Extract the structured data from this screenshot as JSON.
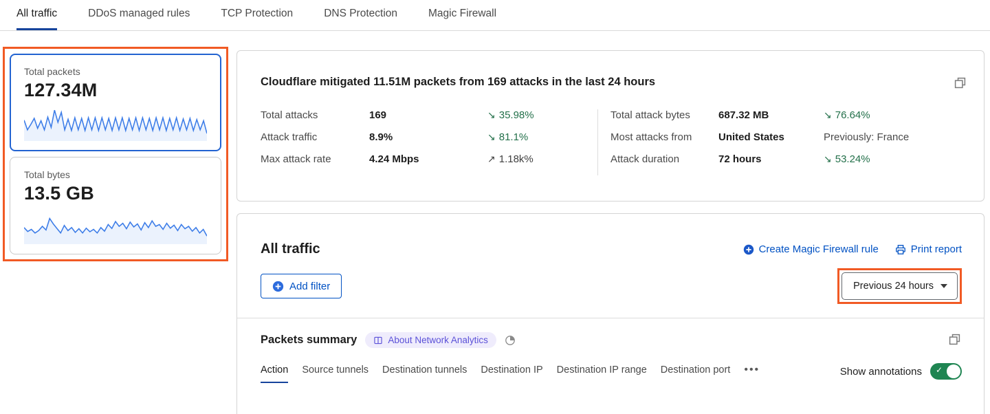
{
  "tabs": [
    {
      "label": "All traffic",
      "active": true
    },
    {
      "label": "DDoS managed rules",
      "active": false
    },
    {
      "label": "TCP Protection",
      "active": false
    },
    {
      "label": "DNS Protection",
      "active": false
    },
    {
      "label": "Magic Firewall",
      "active": false
    }
  ],
  "metric_cards": [
    {
      "label": "Total packets",
      "value": "127.34M",
      "selected": true
    },
    {
      "label": "Total bytes",
      "value": "13.5 GB",
      "selected": false
    }
  ],
  "chart_data": [
    {
      "type": "line",
      "name": "total-packets-sparkline",
      "title": "Total packets",
      "color": "#3d7de8",
      "values": [
        62,
        30,
        48,
        68,
        35,
        60,
        30,
        72,
        38,
        95,
        55,
        88,
        30,
        65,
        28,
        70,
        30,
        68,
        28,
        70,
        30,
        70,
        28,
        70,
        30,
        68,
        28,
        70,
        30,
        70,
        28,
        68,
        30,
        70,
        28,
        70,
        30,
        68,
        28,
        70,
        30,
        70,
        28,
        68,
        30,
        70,
        28,
        66,
        30,
        68,
        28,
        64,
        30,
        60,
        18
      ]
    },
    {
      "type": "line",
      "name": "total-bytes-sparkline",
      "title": "Total bytes",
      "color": "#3d7de8",
      "values": [
        48,
        35,
        42,
        30,
        38,
        52,
        40,
        78,
        60,
        45,
        30,
        55,
        38,
        48,
        32,
        44,
        30,
        46,
        34,
        42,
        30,
        48,
        36,
        58,
        45,
        68,
        52,
        62,
        44,
        66,
        50,
        60,
        40,
        64,
        48,
        70,
        52,
        58,
        42,
        62,
        46,
        56,
        38,
        58,
        44,
        52,
        36,
        48,
        30,
        42,
        20
      ]
    }
  ],
  "summary_panel": {
    "title": "Cloudflare mitigated 11.51M packets from 169 attacks in the last 24 hours",
    "left_stats": [
      {
        "label": "Total attacks",
        "value": "169",
        "arrow": "↘",
        "change": "35.98%"
      },
      {
        "label": "Attack traffic",
        "value": "8.9%",
        "arrow": "↘",
        "change": "81.1%"
      },
      {
        "label": "Max attack rate",
        "value": "4.24 Mbps",
        "arrow": "↗",
        "change": "1.18k%"
      }
    ],
    "right_stats": [
      {
        "label": "Total attack bytes",
        "value": "687.32 MB",
        "arrow": "↘",
        "change": "76.64%"
      },
      {
        "label": "Most attacks from",
        "value": "United States",
        "arrow": "",
        "change": "Previously: France"
      },
      {
        "label": "Attack duration",
        "value": "72 hours",
        "arrow": "↘",
        "change": "53.24%"
      }
    ]
  },
  "traffic_panel": {
    "title": "All traffic",
    "create_rule_label": "Create Magic Firewall rule",
    "print_label": "Print report",
    "add_filter_label": "Add filter",
    "time_range_label": "Previous 24 hours"
  },
  "packets_summary": {
    "title": "Packets summary",
    "badge_label": "About Network Analytics",
    "tabs": [
      {
        "label": "Action",
        "active": true
      },
      {
        "label": "Source tunnels",
        "active": false
      },
      {
        "label": "Destination tunnels",
        "active": false
      },
      {
        "label": "Destination IP",
        "active": false
      },
      {
        "label": "Destination IP range",
        "active": false
      },
      {
        "label": "Destination port",
        "active": false
      }
    ],
    "more_label": "•••",
    "show_annotations_label": "Show annotations",
    "annotations_on": true,
    "toggle_check": "✓"
  },
  "colors": {
    "accent_blue": "#0051c3",
    "tab_underline_blue": "#16449c",
    "annotation_orange": "#f15a24",
    "change_green": "#23704a",
    "sparkline_blue": "#3d7de8",
    "selected_card_border": "#2263d1",
    "toggle_green": "#1f8552",
    "badge_background": "#efecfc",
    "badge_text": "#5b51d8"
  }
}
